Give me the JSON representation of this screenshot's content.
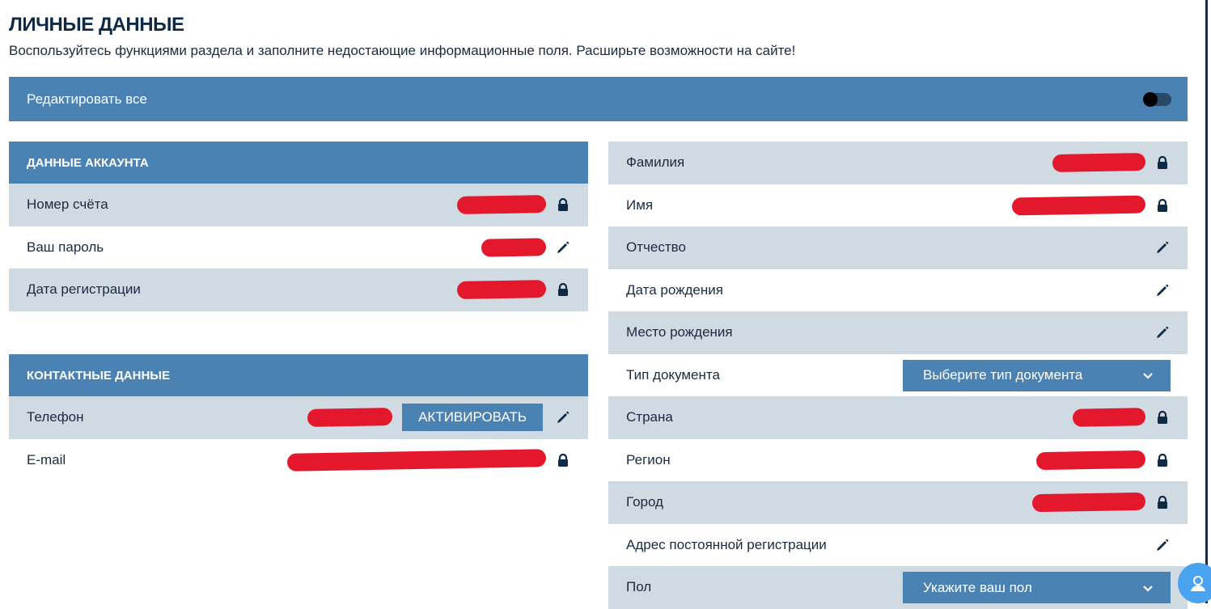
{
  "page": {
    "title": "ЛИЧНЫЕ ДАННЫЕ",
    "subtitle": "Воспользуйтесь функциями раздела и заполните недостающие информационные поля. Расширьте возможности на сайте!"
  },
  "edit_all": {
    "label": "Редактировать все",
    "enabled": false
  },
  "account": {
    "header": "ДАННЫЕ АККАУНТА",
    "rows": [
      {
        "label": "Номер счёта",
        "icon": "lock-icon",
        "redacted": true
      },
      {
        "label": "Ваш пароль",
        "icon": "pencil-icon",
        "redacted": true
      },
      {
        "label": "Дата регистрации",
        "icon": "lock-icon",
        "redacted": true
      }
    ]
  },
  "contact": {
    "header": "КОНТАКТНЫЕ ДАННЫЕ",
    "rows": [
      {
        "label": "Телефон",
        "icon": "pencil-icon",
        "redacted": true,
        "button": "АКТИВИРОВАТЬ"
      },
      {
        "label": "E-mail",
        "icon": "lock-icon",
        "redacted": true
      }
    ]
  },
  "personal": {
    "rows": [
      {
        "label": "Фамилия",
        "icon": "lock-icon",
        "redacted": true
      },
      {
        "label": "Имя",
        "icon": "lock-icon",
        "redacted": true
      },
      {
        "label": "Отчество",
        "icon": "pencil-icon"
      },
      {
        "label": "Дата рождения",
        "icon": "pencil-icon"
      },
      {
        "label": "Место рождения",
        "icon": "pencil-icon"
      },
      {
        "label": "Тип документа",
        "select": "Выберите тип документа"
      },
      {
        "label": "Страна",
        "icon": "lock-icon",
        "redacted": true
      },
      {
        "label": "Регион",
        "icon": "lock-icon",
        "redacted": true
      },
      {
        "label": "Город",
        "icon": "lock-icon",
        "redacted": true
      },
      {
        "label": "Адрес постоянной регистрации",
        "icon": "pencil-icon"
      },
      {
        "label": "Пол",
        "select": "Укажите ваш пол"
      }
    ]
  },
  "colors": {
    "header": "#4a82b4",
    "row_alt": "#d0dae2",
    "text": "#1a2b40",
    "redaction": "#e3182d"
  }
}
